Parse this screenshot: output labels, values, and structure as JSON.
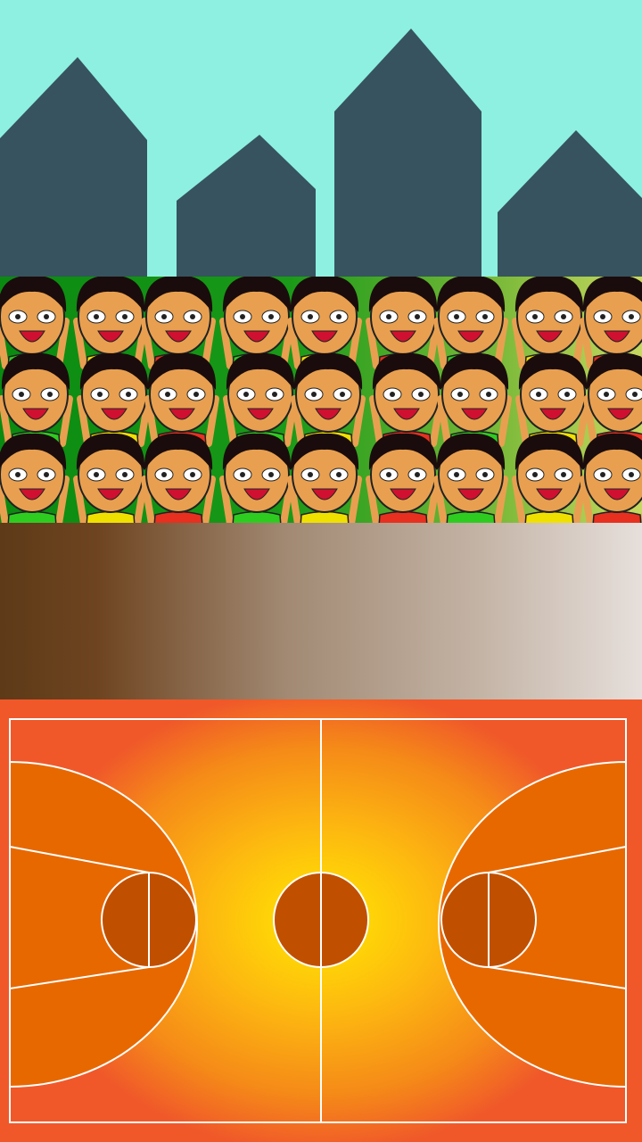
{
  "scene": "basketball-arena",
  "colors": {
    "sky": "#8ef0e0",
    "buildings": "#36535f",
    "court_paint": "#e86800",
    "court_circle": "#c05000",
    "court_lines": "#ffffff",
    "skin": "#e8a050",
    "hair": "#1a0c0c",
    "mouth": "#d01030",
    "shirts": [
      "#2ecc20",
      "#f0e000",
      "#e83020"
    ]
  },
  "crowd": {
    "rows": 3,
    "fans_per_row": 9,
    "shirt_pattern": [
      [
        "green",
        "yellow",
        "red",
        "green",
        "yellow",
        "red",
        "green",
        "yellow",
        "red"
      ],
      [
        "green",
        "yellow",
        "red",
        "green",
        "yellow",
        "red",
        "green",
        "yellow",
        "red"
      ],
      [
        "green",
        "yellow",
        "red",
        "green",
        "yellow",
        "red",
        "green",
        "yellow",
        "red"
      ]
    ]
  }
}
